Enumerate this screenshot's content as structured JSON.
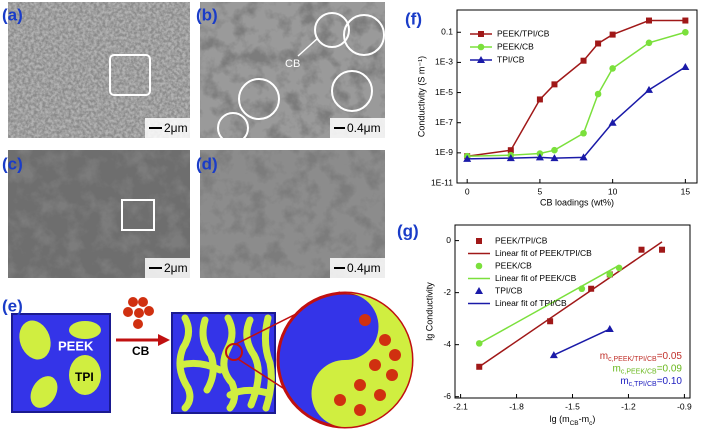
{
  "panels": {
    "a": "(a)",
    "b": "(b)",
    "c": "(c)",
    "d": "(d)",
    "e": "(e)",
    "f": "(f)",
    "g": "(g)"
  },
  "scale_bars": [
    "2μm",
    "0.4μm",
    "2μm",
    "0.4μm"
  ],
  "cb_marker": "CB",
  "schematic": {
    "matrix": "PEEK",
    "domain": "TPI",
    "filler": "CB"
  },
  "chart_data": [
    {
      "type": "line",
      "xlabel": "CB loadings (wt%)",
      "ylabel": "Conductivity (S m⁻¹)",
      "log_y": true,
      "xlim": [
        -0.7,
        15.8
      ],
      "xticks": [
        0,
        5,
        10,
        15
      ],
      "ylim": [
        1e-11,
        3
      ],
      "yticks": [
        {
          "value": 1e-11,
          "label": "1E-11"
        },
        {
          "value": 1e-09,
          "label": "1E-9"
        },
        {
          "value": 1e-07,
          "label": "1E-7"
        },
        {
          "value": 1e-05,
          "label": "1E-5"
        },
        {
          "value": 0.001,
          "label": "1E-3"
        },
        0.1
      ],
      "series": [
        {
          "name": "PEEK/TPI/CB",
          "color": "#a01818",
          "marker": "square",
          "x": [
            0,
            3,
            5,
            6,
            8,
            9,
            10,
            12.5,
            15
          ],
          "values": [
            6e-10,
            1.5e-09,
            3.5e-06,
            3.5e-05,
            0.0013,
            0.018,
            0.07,
            0.6,
            0.6
          ]
        },
        {
          "name": "PEEK/CB",
          "color": "#7be03c",
          "marker": "circle",
          "x": [
            0,
            3,
            5,
            6,
            8,
            9,
            10,
            12.5,
            15
          ],
          "values": [
            6e-10,
            7e-10,
            9e-10,
            1.5e-09,
            2e-08,
            8e-06,
            0.0004,
            0.02,
            0.1
          ]
        },
        {
          "name": "TPI/CB",
          "color": "#1a1aa8",
          "marker": "triangle",
          "x": [
            0,
            3,
            5,
            6,
            8,
            10,
            12.5,
            15
          ],
          "values": [
            4e-10,
            4.5e-10,
            5e-10,
            4.5e-10,
            5e-10,
            1e-07,
            1.5e-05,
            0.0005
          ]
        }
      ]
    },
    {
      "type": "scatter",
      "ylabel": "lg Conductivity",
      "xlabel_parts": [
        {
          "text": "lg (m"
        },
        {
          "sub": "CB"
        },
        {
          "text": "-m"
        },
        {
          "sub": "c"
        },
        {
          "text": ")"
        }
      ],
      "xlim": [
        -2.13,
        -0.87
      ],
      "xticks": [
        -2.1,
        -1.8,
        -1.5,
        -1.2,
        -0.9
      ],
      "ylim": [
        -6.05,
        0.6
      ],
      "yticks": [
        -6,
        -4,
        -2,
        0
      ],
      "series": [
        {
          "name": "PEEK/TPI/CB",
          "color": "#a01818",
          "style": "markers",
          "marker": "square",
          "x": [
            -2.0,
            -1.62,
            -1.4,
            -1.3,
            -1.13,
            -1.02
          ],
          "values": [
            -4.85,
            -3.1,
            -1.85,
            -1.3,
            -0.35,
            -0.35
          ]
        },
        {
          "name": "Linear fit of PEEK/TPI/CB",
          "color": "#a01818",
          "style": "line",
          "x": [
            -2.0,
            -1.02
          ],
          "values": [
            -4.85,
            -0.05
          ]
        },
        {
          "name": "PEEK/CB",
          "color": "#7be03c",
          "style": "markers",
          "marker": "circle",
          "x": [
            -2.0,
            -1.45,
            -1.3,
            -1.25
          ],
          "values": [
            -3.95,
            -1.85,
            -1.3,
            -1.05
          ]
        },
        {
          "name": "Linear fit of PEEK/CB",
          "color": "#7be03c",
          "style": "line",
          "x": [
            -2.0,
            -1.25
          ],
          "values": [
            -3.95,
            -0.95
          ]
        },
        {
          "name": "TPI/CB",
          "color": "#1a1aa8",
          "style": "markers",
          "marker": "triangle",
          "x": [
            -1.6,
            -1.3
          ],
          "values": [
            -4.4,
            -3.4
          ]
        },
        {
          "name": "Linear fit of TPI/CB",
          "color": "#1a1aa8",
          "style": "line",
          "x": [
            -1.6,
            -1.3
          ],
          "values": [
            -4.4,
            -3.4
          ]
        }
      ],
      "annotations": [
        {
          "main": "m",
          "sub": "c,PEEK/TPI/CB",
          "rest": "=0.05",
          "color": "#c0302a"
        },
        {
          "main": "m",
          "sub": "c,PEEK/CB",
          "rest": "=0.09",
          "color": "#6ab81e"
        },
        {
          "main": "m",
          "sub": "c,TPI/CB",
          "rest": "=0.10",
          "color": "#2020c0"
        }
      ]
    }
  ]
}
